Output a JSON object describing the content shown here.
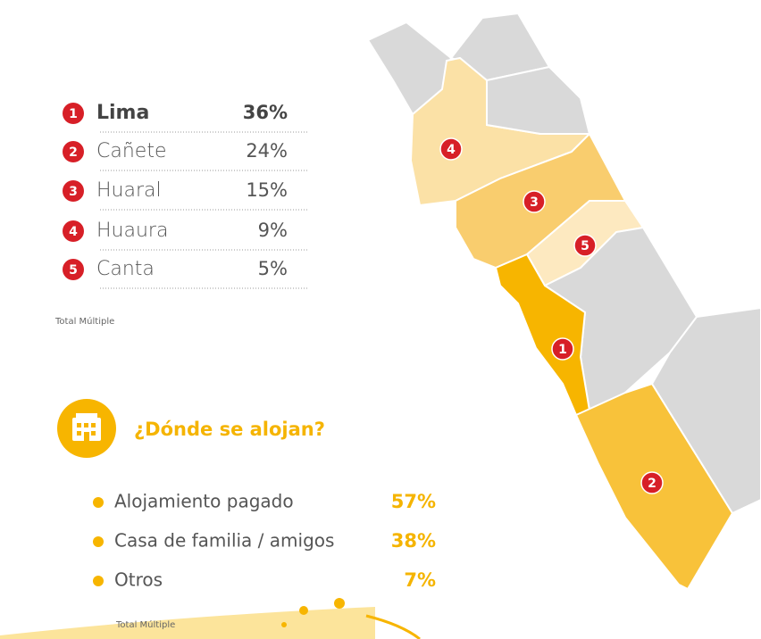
{
  "ranking": {
    "items": [
      {
        "rank": "1",
        "name": "Lima",
        "share": "36%"
      },
      {
        "rank": "2",
        "name": "Cañete",
        "share": "24%"
      },
      {
        "rank": "3",
        "name": "Huaral",
        "share": "15%"
      },
      {
        "rank": "4",
        "name": "Huaura",
        "share": "9%"
      },
      {
        "rank": "5",
        "name": "Canta",
        "share": "5%"
      }
    ],
    "note": "Total Múltiple"
  },
  "map": {
    "regions": [
      {
        "label": "1"
      },
      {
        "label": "2"
      },
      {
        "label": "3"
      },
      {
        "label": "4"
      },
      {
        "label": "5"
      }
    ]
  },
  "lodging": {
    "title": "¿Dónde se alojan?",
    "items": [
      {
        "name": "Alojamiento pagado",
        "share": "57%"
      },
      {
        "name": "Casa de familia / amigos",
        "share": "38%"
      },
      {
        "name": "Otros",
        "share": "7%"
      }
    ],
    "note": "Total Múltiple"
  }
}
